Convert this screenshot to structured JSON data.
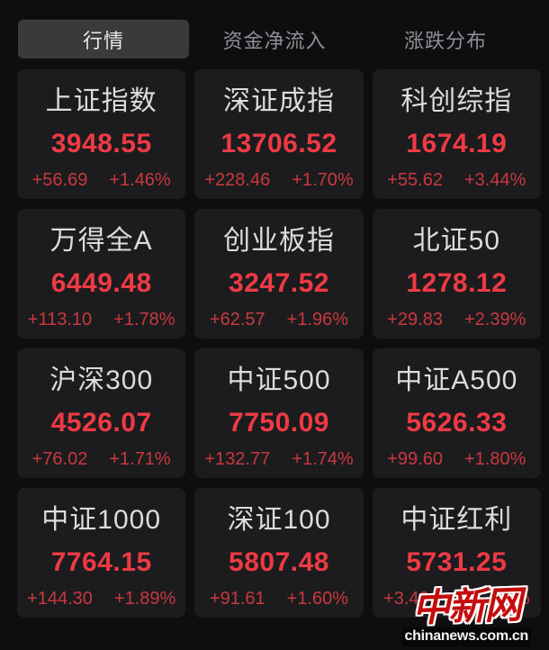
{
  "tabs": {
    "items": [
      {
        "label": "行情",
        "active": true
      },
      {
        "label": "资金净流入",
        "active": false
      },
      {
        "label": "涨跌分布",
        "active": false
      }
    ]
  },
  "indices": [
    {
      "name": "上证指数",
      "value": "3948.55",
      "change": "+56.69",
      "pct": "+1.46%"
    },
    {
      "name": "深证成指",
      "value": "13706.52",
      "change": "+228.46",
      "pct": "+1.70%"
    },
    {
      "name": "科创综指",
      "value": "1674.19",
      "change": "+55.62",
      "pct": "+3.44%"
    },
    {
      "name": "万得全A",
      "value": "6449.48",
      "change": "+113.10",
      "pct": "+1.78%"
    },
    {
      "name": "创业板指",
      "value": "3247.52",
      "change": "+62.57",
      "pct": "+1.96%"
    },
    {
      "name": "北证50",
      "value": "1278.12",
      "change": "+29.83",
      "pct": "+2.39%"
    },
    {
      "name": "沪深300",
      "value": "4526.07",
      "change": "+76.02",
      "pct": "+1.71%"
    },
    {
      "name": "中证500",
      "value": "7750.09",
      "change": "+132.77",
      "pct": "+1.74%"
    },
    {
      "name": "中证A500",
      "value": "5626.33",
      "change": "+99.60",
      "pct": "+1.80%"
    },
    {
      "name": "中证1000",
      "value": "7764.15",
      "change": "+144.30",
      "pct": "+1.89%"
    },
    {
      "name": "深证100",
      "value": "5807.48",
      "change": "+91.61",
      "pct": "+1.60%"
    },
    {
      "name": "中证红利",
      "value": "5731.25",
      "change": "+3.40",
      "pct": "%"
    }
  ],
  "watermark": {
    "logo": "中新网",
    "site": "chinanews.com.cn"
  },
  "colors": {
    "page_bg": "#0e0e10",
    "card_bg": "#1c1c1e",
    "value_red": "#ee3a44",
    "change_red": "#c9383f",
    "logo_red": "#c40d0d"
  }
}
